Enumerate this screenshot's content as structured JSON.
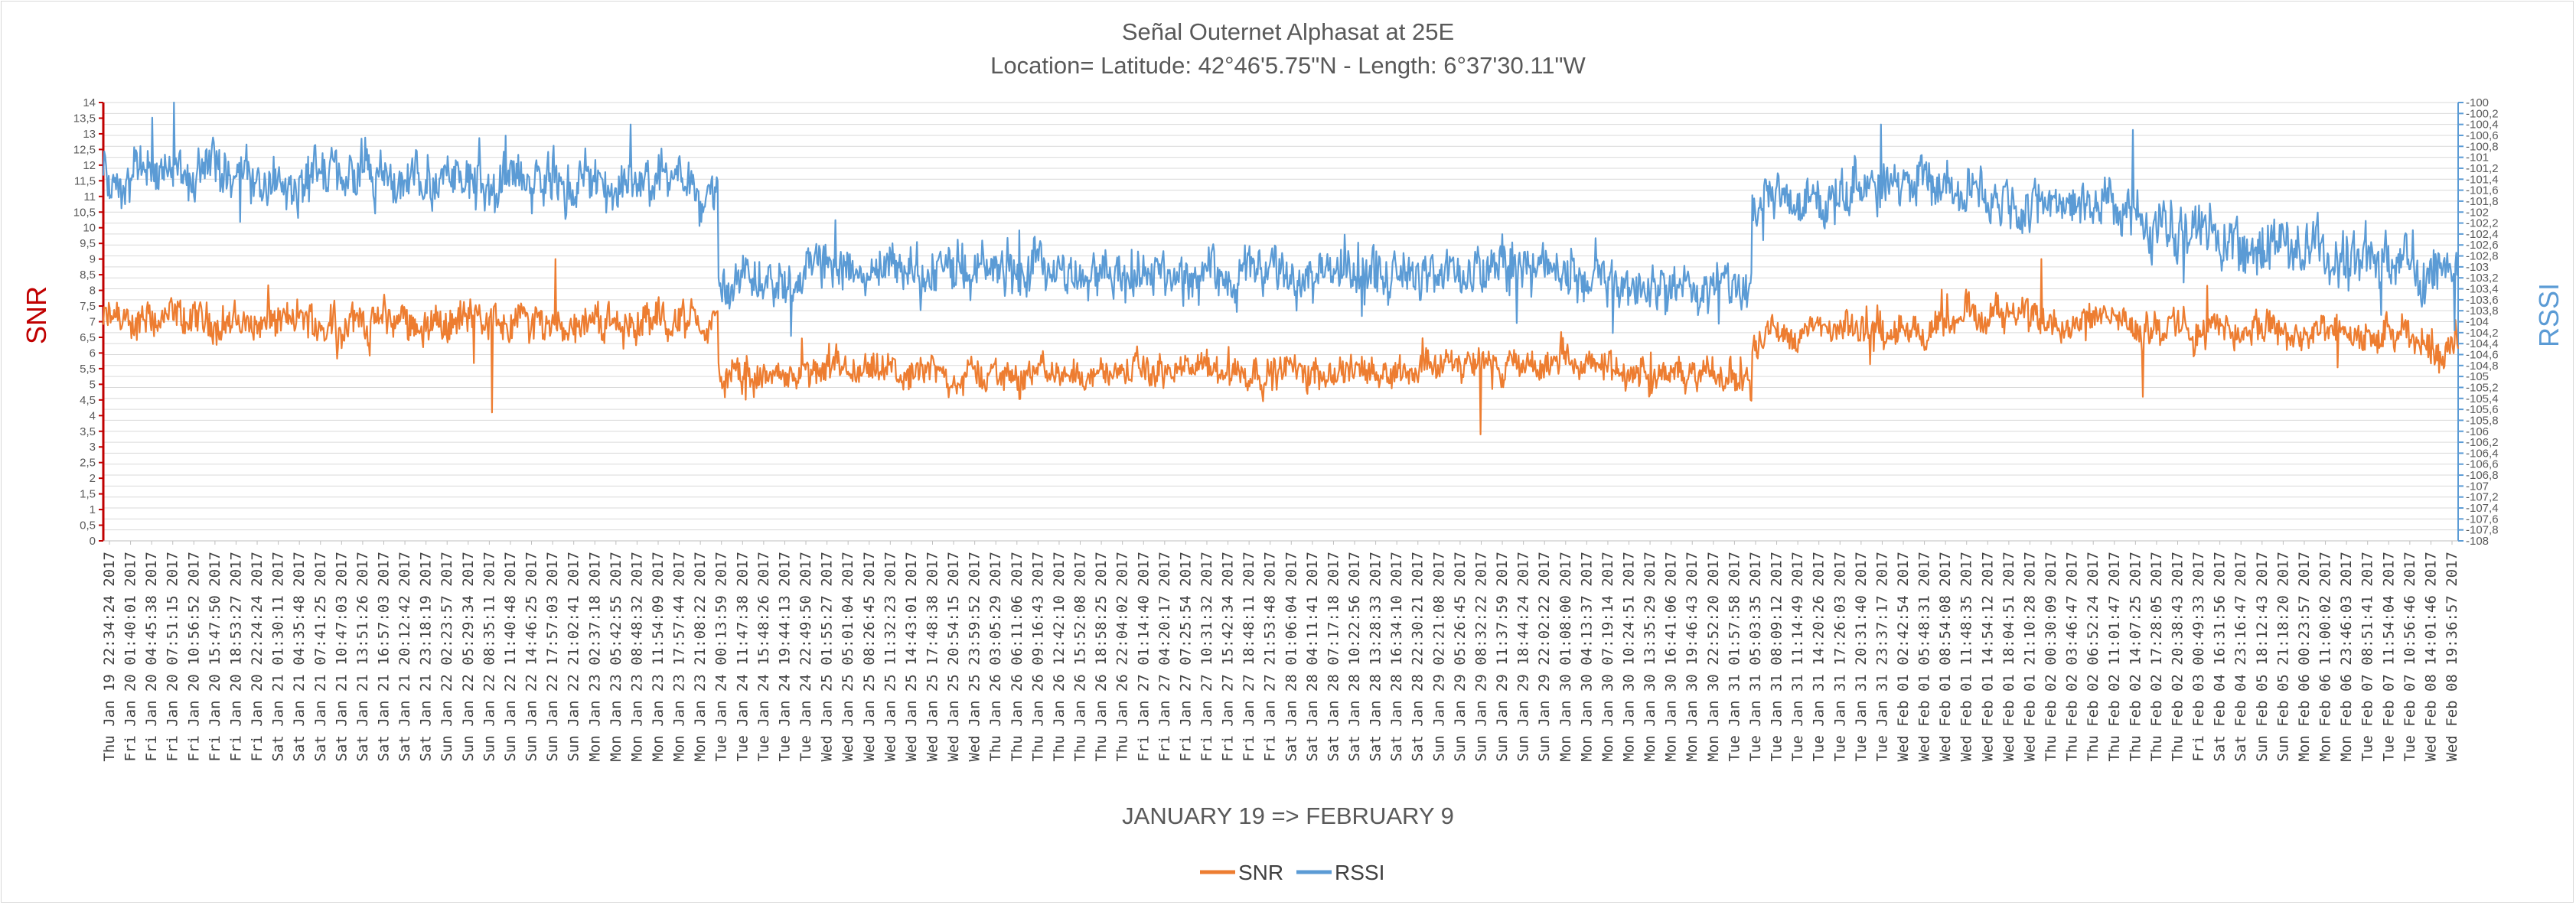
{
  "chart_data": {
    "type": "line",
    "title": "Señal Outernet Alphasat at 25E",
    "subtitle": "Location= Latitude: 42°46'5.75\"N - Length: 6°37'30.11\"W",
    "xlabel": "JANUARY 19 => FEBRUARY 9",
    "ylabel": "SNR",
    "y2label": "RSSI",
    "ylim": [
      0,
      14
    ],
    "y2lim": [
      -108,
      -100
    ],
    "y_ticks": [
      "0",
      "0,5",
      "1",
      "1,5",
      "2",
      "2,5",
      "3",
      "3,5",
      "4",
      "4,5",
      "5",
      "5,5",
      "6",
      "6,5",
      "7",
      "7,5",
      "8",
      "8,5",
      "9",
      "9,5",
      "10",
      "10,5",
      "11",
      "11,5",
      "12",
      "12,5",
      "13",
      "13,5",
      "14"
    ],
    "y2_ticks": [
      "-108",
      "-107,8",
      "-107,6",
      "-107,4",
      "-107,2",
      "-107",
      "-106,8",
      "-106,6",
      "-106,4",
      "-106,2",
      "-106",
      "-105,8",
      "-105,6",
      "-105,4",
      "-105,2",
      "-105",
      "-104,8",
      "-104,6",
      "-104,4",
      "-104,2",
      "-104",
      "-103,8",
      "-103,6",
      "-103,4",
      "-103,2",
      "-103",
      "-102,8",
      "-102,6",
      "-102,4",
      "-102,2",
      "-102",
      "-101,8",
      "-101,6",
      "-101,4",
      "-101,2",
      "-101",
      "-100,8",
      "-100,6",
      "-100,4",
      "-100,2",
      "-100"
    ],
    "x_tick_labels": [
      "Thu Jan 19 22:34:24 2017",
      "Fri Jan 20 01:40:01 2017",
      "Fri Jan 20 04:45:38 2017",
      "Fri Jan 20 07:51:15 2017",
      "Fri Jan 20 10:56:52 2017",
      "Fri Jan 20 15:47:50 2017",
      "Fri Jan 20 18:53:27 2017",
      "Fri Jan 20 22:24:24 2017",
      "Sat Jan 21 01:30:11 2017",
      "Sat Jan 21 04:35:48 2017",
      "Sat Jan 21 07:41:25 2017",
      "Sat Jan 21 10:47:03 2017",
      "Sat Jan 21 13:51:26 2017",
      "Sat Jan 21 16:57:03 2017",
      "Sat Jan 21 20:12:42 2017",
      "Sat Jan 21 23:18:19 2017",
      "Sun Jan 22 02:23:57 2017",
      "Sun Jan 22 05:29:34 2017",
      "Sun Jan 22 08:35:11 2017",
      "Sun Jan 22 11:40:48 2017",
      "Sun Jan 22 14:46:25 2017",
      "Sun Jan 22 17:57:03 2017",
      "Sun Jan 22 21:02:41 2017",
      "Mon Jan 23 02:37:18 2017",
      "Mon Jan 23 05:42:55 2017",
      "Mon Jan 23 08:48:32 2017",
      "Mon Jan 23 11:54:09 2017",
      "Mon Jan 23 17:57:44 2017",
      "Mon Jan 23 21:08:22 2017",
      "Tue Jan 24 00:13:59 2017",
      "Tue Jan 24 11:47:38 2017",
      "Tue Jan 24 15:48:26 2017",
      "Tue Jan 24 19:44:13 2017",
      "Tue Jan 24 22:49:50 2017",
      "Wed Jan 25 01:55:27 2017",
      "Wed Jan 25 05:01:04 2017",
      "Wed Jan 25 08:26:45 2017",
      "Wed Jan 25 11:32:23 2017",
      "Wed Jan 25 14:43:01 2017",
      "Wed Jan 25 17:48:38 2017",
      "Wed Jan 25 20:54:15 2017",
      "Wed Jan 25 23:59:52 2017",
      "Thu Jan 26 03:05:29 2017",
      "Thu Jan 26 06:11:06 2017",
      "Thu Jan 26 09:16:43 2017",
      "Thu Jan 26 12:42:10 2017",
      "Thu Jan 26 15:52:08 2017",
      "Thu Jan 26 18:58:25 2017",
      "Thu Jan 26 22:04:02 2017",
      "Fri Jan 27 01:14:40 2017",
      "Fri Jan 27 04:20:17 2017",
      "Fri Jan 27 07:25:54 2017",
      "Fri Jan 27 10:31:32 2017",
      "Fri Jan 27 15:42:34 2017",
      "Fri Jan 27 18:48:11 2017",
      "Fri Jan 27 21:53:48 2017",
      "Sat Jan 28 01:06:04 2017",
      "Sat Jan 28 04:11:41 2017",
      "Sat Jan 28 07:17:18 2017",
      "Sat Jan 28 10:22:56 2017",
      "Sat Jan 28 13:28:33 2017",
      "Sat Jan 28 16:34:10 2017",
      "Sat Jan 28 22:30:21 2017",
      "Sun Jan 29 02:21:08 2017",
      "Sun Jan 29 05:26:45 2017",
      "Sun Jan 29 08:32:22 2017",
      "Sun Jan 29 11:37:59 2017",
      "Sun Jan 29 18:44:24 2017",
      "Sun Jan 29 22:02:22 2017",
      "Mon Jan 30 01:08:00 2017",
      "Mon Jan 30 04:13:37 2017",
      "Mon Jan 30 07:19:14 2017",
      "Mon Jan 30 10:24:51 2017",
      "Mon Jan 30 13:35:29 2017",
      "Mon Jan 30 16:41:06 2017",
      "Mon Jan 30 19:46:43 2017",
      "Mon Jan 30 22:52:20 2017",
      "Tue Jan 31 01:57:58 2017",
      "Tue Jan 31 05:03:35 2017",
      "Tue Jan 31 08:09:12 2017",
      "Tue Jan 31 11:14:49 2017",
      "Tue Jan 31 14:20:26 2017",
      "Tue Jan 31 17:26:03 2017",
      "Tue Jan 31 20:31:40 2017",
      "Tue Jan 31 23:37:17 2017",
      "Wed Feb 01 02:42:54 2017",
      "Wed Feb 01 05:48:31 2017",
      "Wed Feb 01 08:54:08 2017",
      "Wed Feb 01 11:48:35 2017",
      "Wed Feb 01 14:54:12 2017",
      "Wed Feb 01 18:04:51 2017",
      "Wed Feb 01 21:10:28 2017",
      "Thu Feb 02 00:30:09 2017",
      "Thu Feb 02 03:46:47 2017",
      "Thu Feb 02 06:52:24 2017",
      "Thu Feb 02 11:01:47 2017",
      "Thu Feb 02 14:07:25 2017",
      "Thu Feb 02 17:28:05 2017",
      "Thu Feb 02 20:38:43 2017",
      "Fri Feb 03 00:49:33 2017",
      "Sat Feb 04 16:31:56 2017",
      "Sat Feb 04 23:16:47 2017",
      "Sun Feb 05 18:12:43 2017",
      "Sun Feb 05 21:18:20 2017",
      "Mon Feb 06 00:23:57 2017",
      "Mon Feb 06 11:00:02 2017",
      "Mon Feb 06 23:46:03 2017",
      "Tue Feb 07 08:51:41 2017",
      "Tue Feb 07 11:54:04 2017",
      "Tue Feb 07 10:56:46 2017",
      "Wed Feb 08 14:01:46 2017",
      "Wed Feb 08 19:36:57 2017"
    ],
    "series": [
      {
        "name": "SNR",
        "axis": "left",
        "color": "#ED7D31",
        "segments": [
          {
            "x_from": 0.0,
            "x_to": 0.261,
            "level": [
              7.0,
              7.0
            ],
            "noise": 0.55
          },
          {
            "x_from": 0.261,
            "x_to": 0.64,
            "level": [
              5.2,
              5.6
            ],
            "noise": 0.45
          },
          {
            "x_from": 0.64,
            "x_to": 0.7,
            "level": [
              5.4,
              5.2
            ],
            "noise": 0.45
          },
          {
            "x_from": 0.7,
            "x_to": 0.79,
            "level": [
              6.6,
              6.8
            ],
            "noise": 0.45
          },
          {
            "x_from": 0.79,
            "x_to": 0.861,
            "level": [
              7.3,
              7.1
            ],
            "noise": 0.45
          },
          {
            "x_from": 0.861,
            "x_to": 1.0,
            "level": [
              6.9,
              6.3
            ],
            "noise": 0.5
          }
        ],
        "spikes": [
          {
            "x": 0.165,
            "value": 4.1
          },
          {
            "x": 0.192,
            "value": 9.0
          },
          {
            "x": 0.585,
            "value": 3.4
          },
          {
            "x": 0.823,
            "value": 9.0
          },
          {
            "x": 0.866,
            "value": 4.6
          }
        ]
      },
      {
        "name": "RSSI",
        "axis": "right",
        "color": "#5B9BD5",
        "segments": [
          {
            "x_from": 0.0,
            "x_to": 0.261,
            "level": [
              -101.3,
              -101.5
            ],
            "noise": 0.4
          },
          {
            "x_from": 0.261,
            "x_to": 0.64,
            "level": [
              -103.1,
              -103.1
            ],
            "noise": 0.4
          },
          {
            "x_from": 0.64,
            "x_to": 0.7,
            "level": [
              -103.4,
              -103.4
            ],
            "noise": 0.4
          },
          {
            "x_from": 0.7,
            "x_to": 0.79,
            "level": [
              -101.8,
              -101.5
            ],
            "noise": 0.4
          },
          {
            "x_from": 0.79,
            "x_to": 0.861,
            "level": [
              -101.7,
              -101.8
            ],
            "noise": 0.4
          },
          {
            "x_from": 0.861,
            "x_to": 1.0,
            "level": [
              -102.2,
              -103.2
            ],
            "noise": 0.45
          }
        ],
        "spikes": [
          {
            "x": 0.03,
            "value": -100.0
          },
          {
            "x": 0.224,
            "value": -100.4
          },
          {
            "x": 0.755,
            "value": -100.4
          },
          {
            "x": 0.862,
            "value": -100.5
          }
        ]
      }
    ],
    "legend": {
      "placement": "bottom-center",
      "items": [
        "SNR",
        "RSSI"
      ]
    },
    "grid": true,
    "colors": {
      "snr": "#ED7D31",
      "rssi": "#5B9BD5",
      "left_axis": "#C00000",
      "right_axis": "#5B9BD5",
      "grid": "#d9d9d9"
    }
  }
}
